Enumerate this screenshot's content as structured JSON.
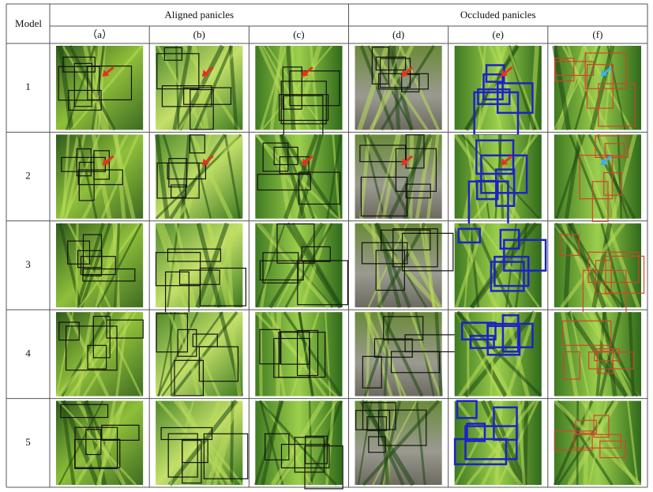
{
  "header": {
    "model": "Model",
    "groups": [
      "Aligned panicles",
      "Occluded panicles"
    ],
    "columns": [
      "（a）",
      "(b)",
      "(c)",
      "(d)",
      "(e)",
      "(f)"
    ]
  },
  "rows": [
    "1",
    "2",
    "3",
    "4",
    "5"
  ]
}
